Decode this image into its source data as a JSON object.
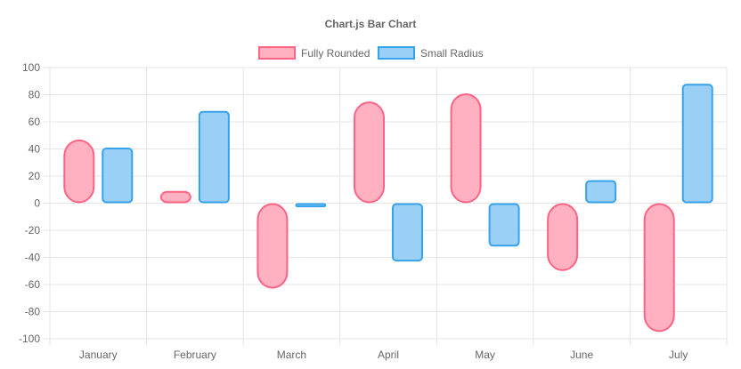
{
  "chart_data": {
    "type": "bar",
    "title": "Chart.js Bar Chart",
    "categories": [
      "January",
      "February",
      "March",
      "April",
      "May",
      "June",
      "July"
    ],
    "series": [
      {
        "name": "Fully Rounded",
        "values": [
          [
            0,
            47
          ],
          [
            0,
            9
          ],
          [
            -63,
            0
          ],
          [
            0,
            75
          ],
          [
            0,
            81
          ],
          [
            -50,
            0
          ],
          [
            -95,
            0
          ]
        ],
        "color": "#ff6384",
        "fill": "#ffb1c1",
        "border_radius": "full"
      },
      {
        "name": "Small Radius",
        "values": [
          [
            0,
            41
          ],
          [
            0,
            68
          ],
          [
            -3,
            0
          ],
          [
            -43,
            0
          ],
          [
            -32,
            0
          ],
          [
            0,
            17
          ],
          [
            0,
            88
          ]
        ],
        "color": "#36a2eb",
        "fill": "#9ad0f5",
        "border_radius": "small"
      }
    ],
    "ylim": [
      -100,
      100
    ],
    "yticks": [
      "100",
      "80",
      "60",
      "40",
      "20",
      "0",
      "-20",
      "-40",
      "-60",
      "-80",
      "-100"
    ],
    "grid": true,
    "legend_position": "top"
  }
}
